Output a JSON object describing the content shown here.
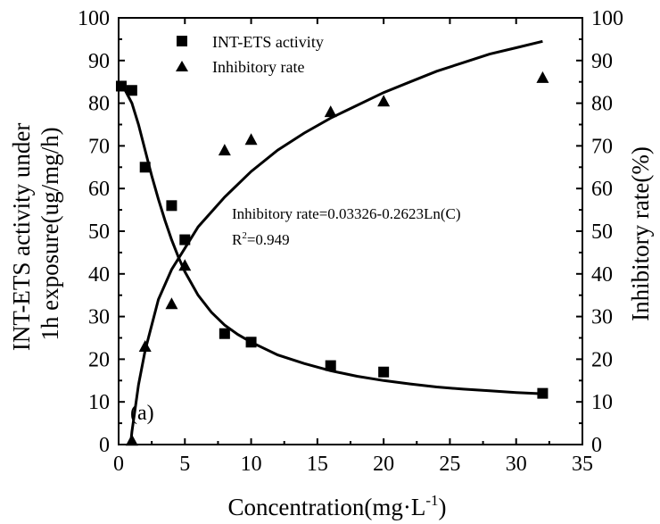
{
  "chart_data": {
    "type": "scatter",
    "xlabel": "Concentration(mg·L",
    "xlabel_sup": "-1",
    "xlabel_end": ")",
    "ylabel_left": [
      "INT-ETS activity under",
      "1h exposure(ug/mg/h)"
    ],
    "ylabel_right": "Inhibitory rate(%)",
    "xlim": [
      0,
      35
    ],
    "ylim_left": [
      0,
      100
    ],
    "ylim_right": [
      0,
      100
    ],
    "x_ticks": [
      0,
      5,
      10,
      15,
      20,
      25,
      30,
      35
    ],
    "y_ticks": [
      0,
      10,
      20,
      30,
      40,
      50,
      60,
      70,
      80,
      90,
      100
    ],
    "panel_label": "(a)",
    "annotation_line1": "Inhibitory rate=0.03326-0.2623Ln(C)",
    "annotation_r2_prefix": "R",
    "annotation_r2_sup": "2",
    "annotation_r2_value": "=0.949",
    "legend_position": "top-center",
    "series": [
      {
        "name": "INT-ETS activity",
        "marker": "square",
        "axis": "left",
        "x": [
          0.2,
          1,
          2,
          4,
          5,
          8,
          10,
          16,
          20,
          32
        ],
        "y": [
          84,
          83,
          65,
          56,
          48,
          26,
          24,
          18.5,
          17,
          12
        ]
      },
      {
        "name": "Inhibitory rate",
        "marker": "triangle",
        "axis": "right",
        "x": [
          1,
          2,
          4,
          5,
          8,
          10,
          16,
          20,
          32
        ],
        "y": [
          1,
          23,
          33,
          42,
          69,
          71.5,
          78,
          80.5,
          86
        ]
      }
    ],
    "fit_curves": [
      {
        "series": "INT-ETS activity",
        "x": [
          0.2,
          0.5,
          1,
          1.5,
          2,
          2.5,
          3,
          3.5,
          4,
          4.5,
          5,
          6,
          7,
          8,
          9,
          10,
          12,
          14,
          16,
          18,
          20,
          22,
          24,
          26,
          28,
          30,
          32
        ],
        "y": [
          84,
          83,
          80,
          75,
          69,
          63,
          57.5,
          52.5,
          48,
          44,
          40.5,
          35,
          31,
          28,
          25.8,
          24,
          21,
          19,
          17.3,
          16,
          15,
          14.2,
          13.5,
          13,
          12.6,
          12.2,
          11.9
        ]
      },
      {
        "series": "Inhibitory rate",
        "x": [
          0.9,
          1,
          1.5,
          2,
          3,
          4,
          5,
          6,
          8,
          10,
          12,
          14,
          16,
          18,
          20,
          22,
          24,
          26,
          28,
          30,
          32
        ],
        "y": [
          0,
          3,
          14,
          22,
          34,
          41,
          46,
          51,
          58,
          64,
          69,
          73,
          76.5,
          79.5,
          82.5,
          85,
          87.5,
          89.5,
          91.5,
          93,
          94.5
        ]
      }
    ]
  }
}
